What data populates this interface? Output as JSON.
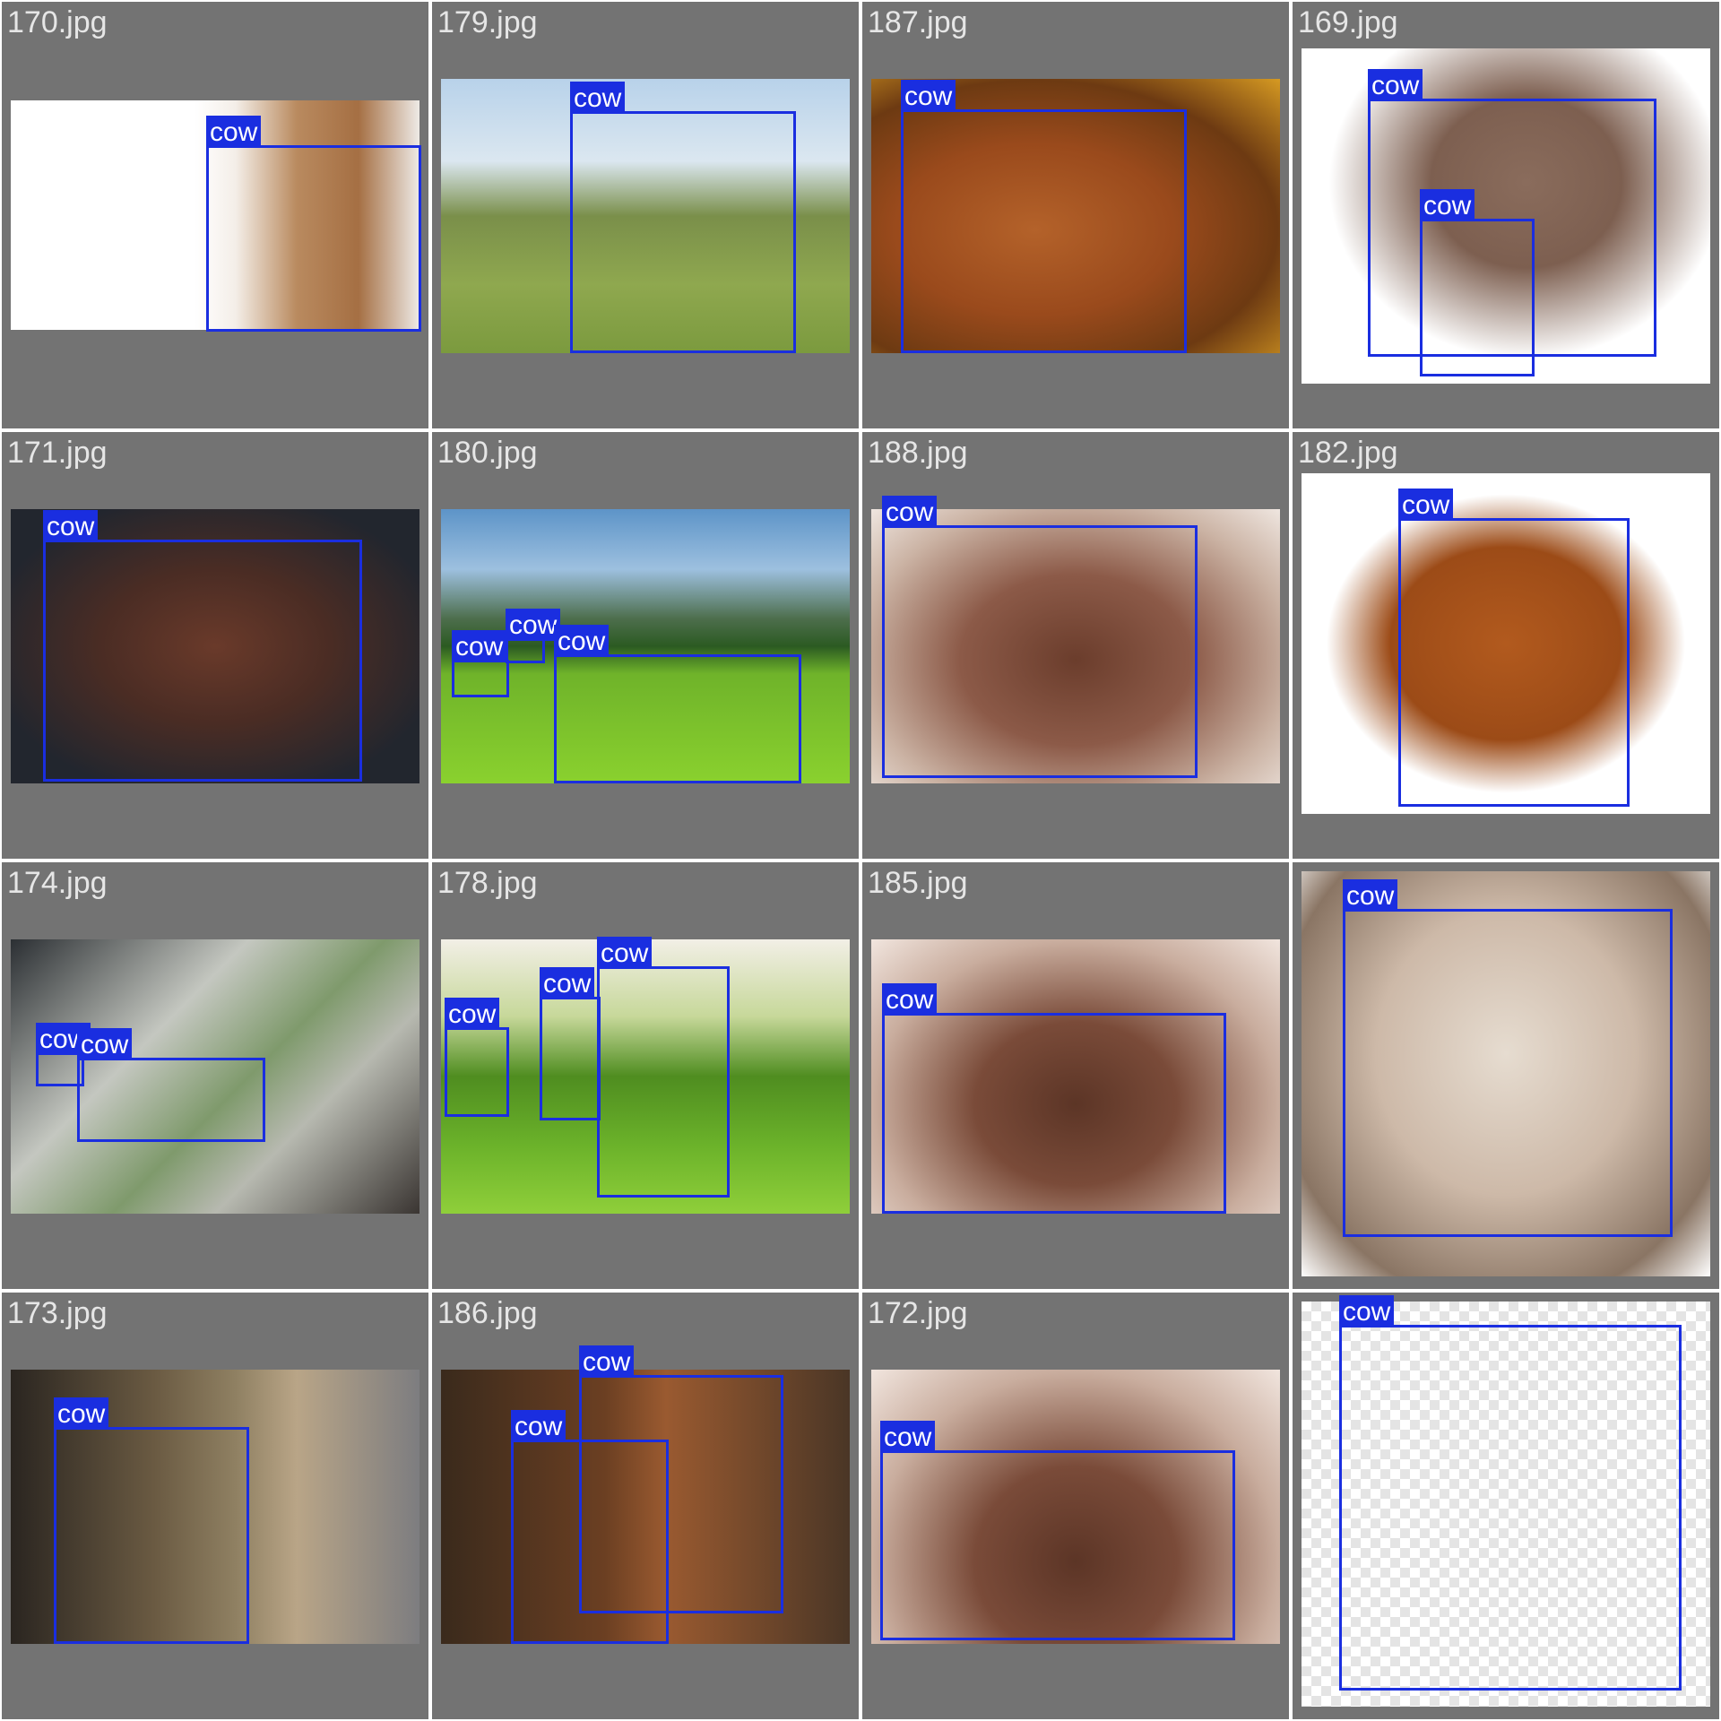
{
  "tiles": [
    {
      "name": "170.jpg",
      "labels": [
        "cow"
      ]
    },
    {
      "name": "179.jpg",
      "labels": [
        "cow"
      ]
    },
    {
      "name": "187.jpg",
      "labels": [
        "cow"
      ]
    },
    {
      "name": "169.jpg",
      "labels": [
        "cow",
        "cow"
      ]
    },
    {
      "name": "171.jpg",
      "labels": [
        "cow"
      ]
    },
    {
      "name": "180.jpg",
      "labels": [
        "cow",
        "cow",
        "cow"
      ]
    },
    {
      "name": "188.jpg",
      "labels": [
        "cow"
      ]
    },
    {
      "name": "182.jpg",
      "labels": [
        "cow"
      ]
    },
    {
      "name": "174.jpg",
      "labels": [
        "cow",
        "cow"
      ]
    },
    {
      "name": "178.jpg",
      "labels": [
        "cow",
        "cow",
        "cow"
      ]
    },
    {
      "name": "185.jpg",
      "labels": [
        "cow"
      ]
    },
    {
      "name": "",
      "labels": [
        "cow"
      ]
    },
    {
      "name": "173.jpg",
      "labels": [
        "cow"
      ]
    },
    {
      "name": "186.jpg",
      "labels": [
        "cow",
        "cow"
      ]
    },
    {
      "name": "172.jpg",
      "labels": [
        "cow"
      ]
    },
    {
      "name": "",
      "labels": [
        "cow"
      ]
    }
  ],
  "colors": {
    "background": "#737373",
    "box": "#1a2ee0",
    "label_text": "#ffffff",
    "filename_text": "#e6e6e6"
  }
}
